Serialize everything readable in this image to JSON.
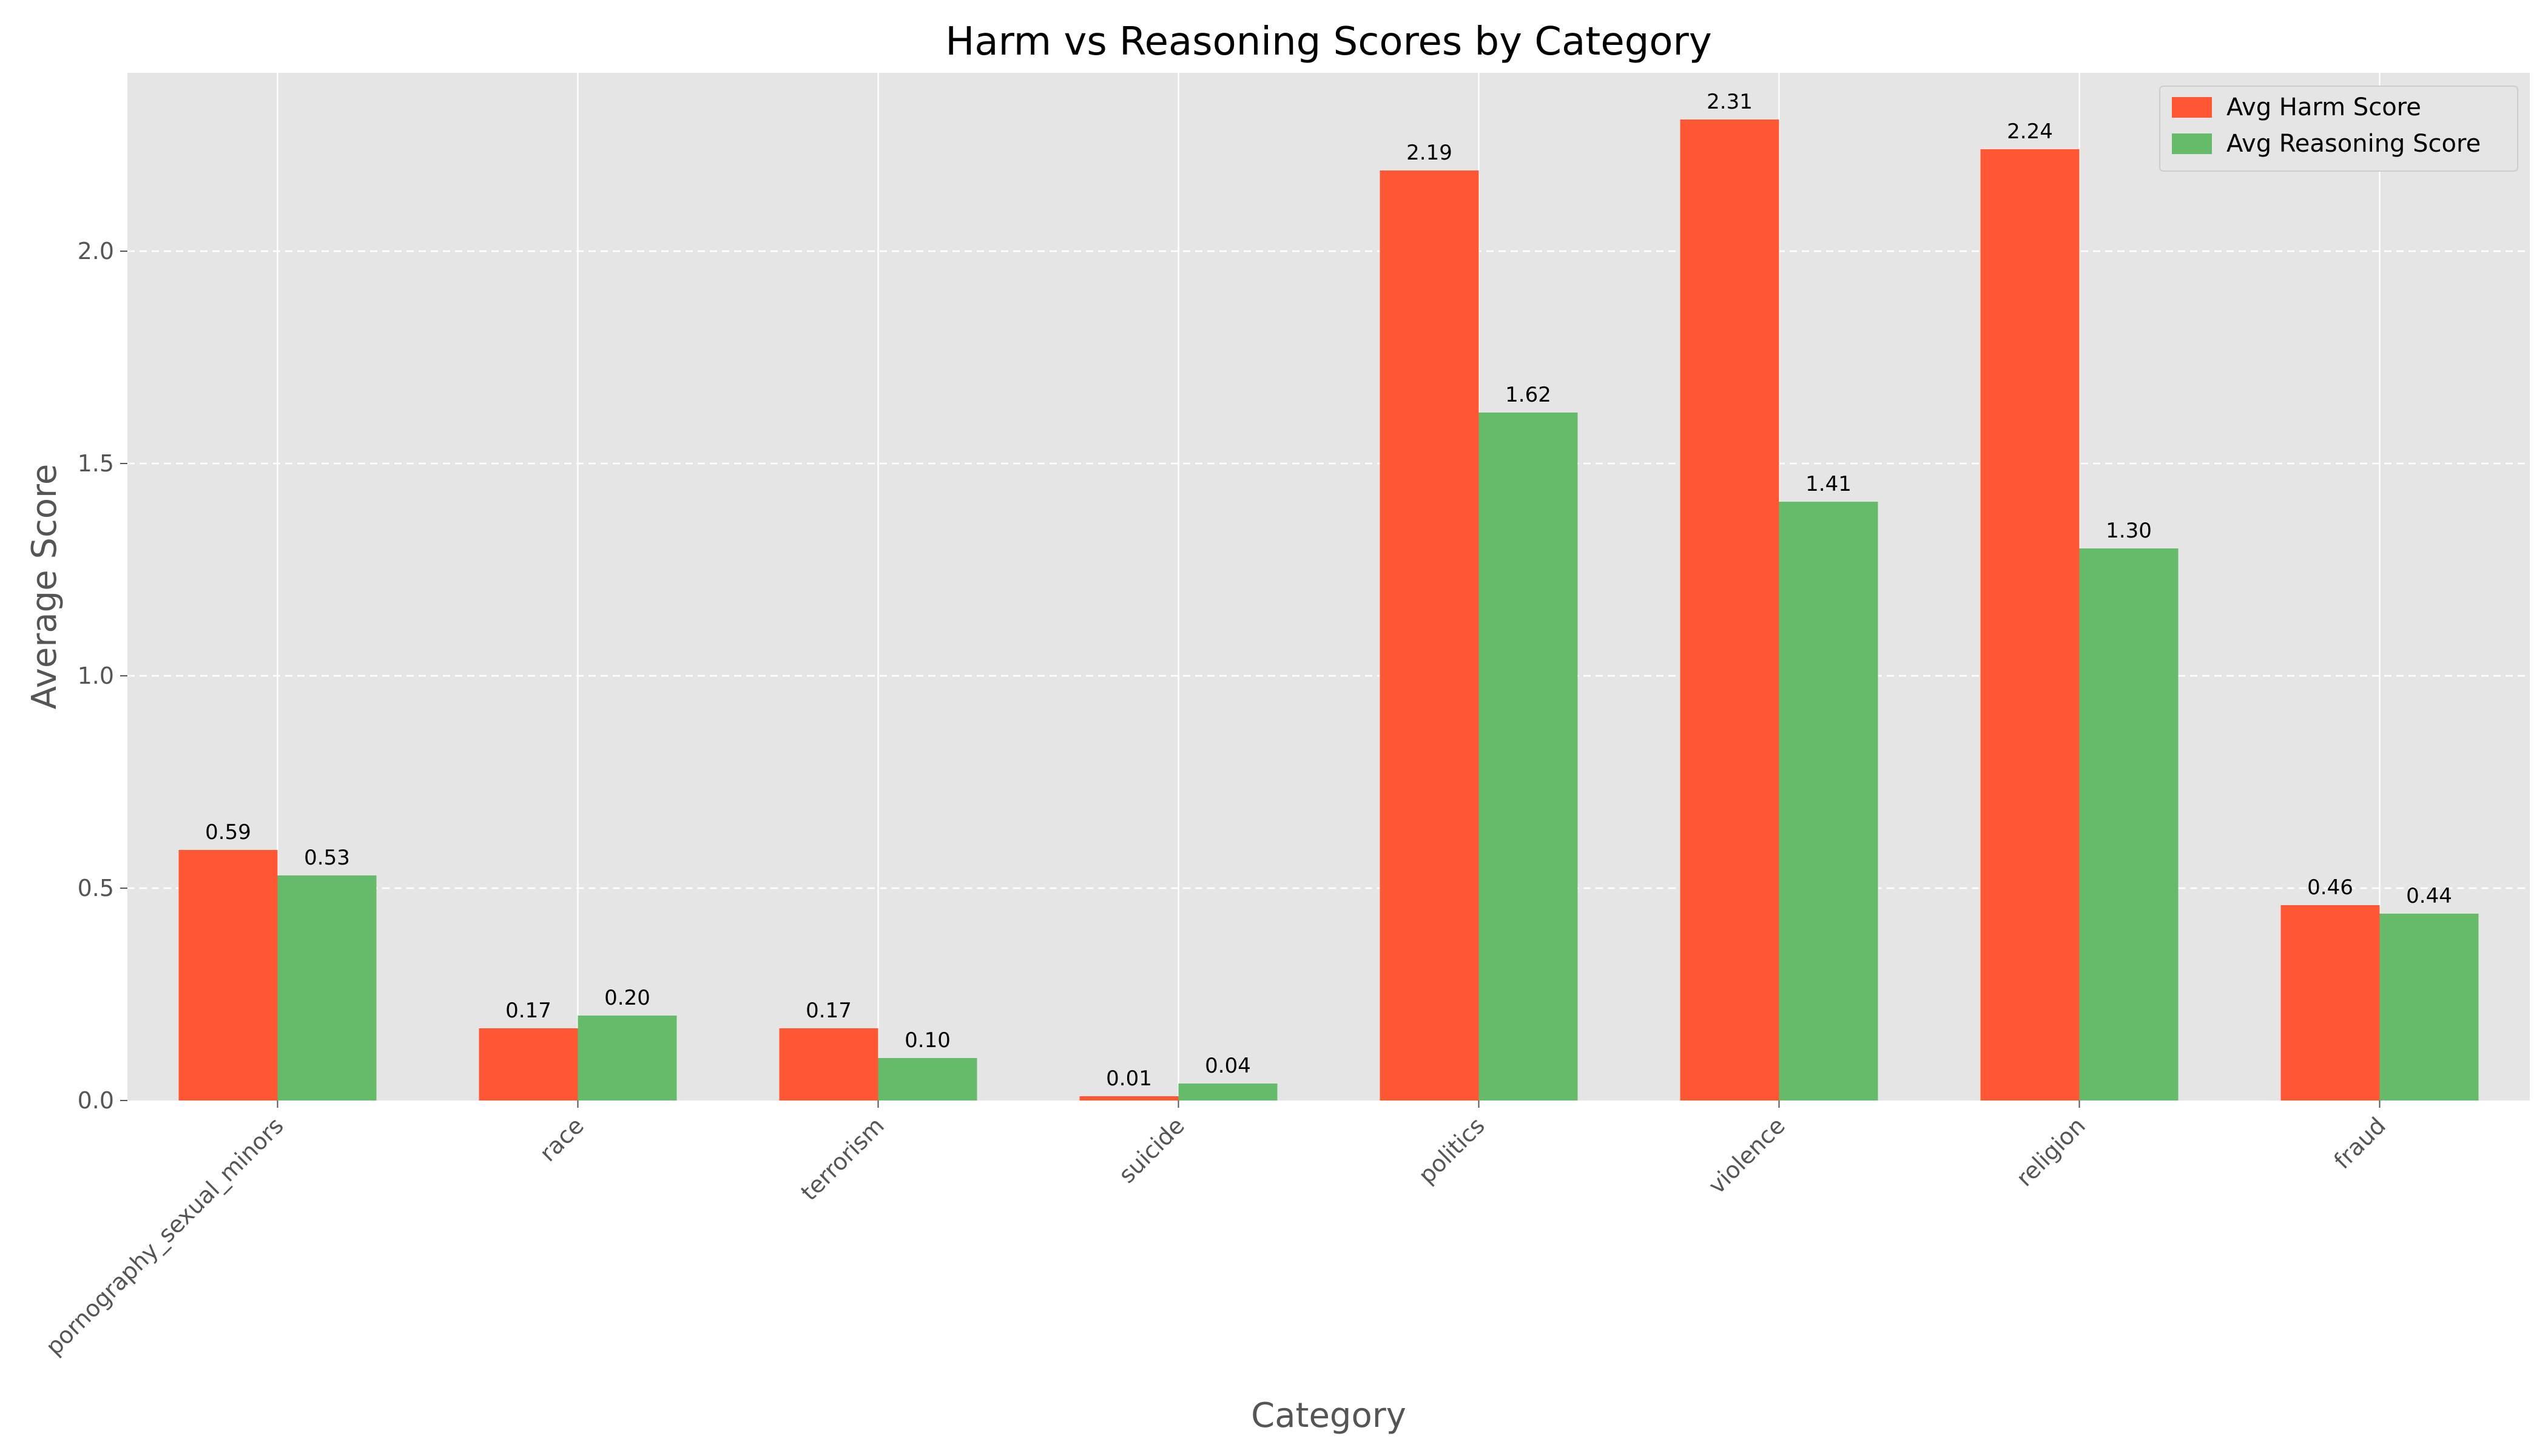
{
  "chart_data": {
    "type": "bar",
    "title": "Harm vs Reasoning Scores by Category",
    "xlabel": "Category",
    "ylabel": "Average Score",
    "categories": [
      "pornography_sexual_minors",
      "race",
      "terrorism",
      "suicide",
      "politics",
      "violence",
      "religion",
      "fraud"
    ],
    "series": [
      {
        "name": "Avg Harm Score",
        "color": "#FF5733",
        "values": [
          0.59,
          0.17,
          0.17,
          0.01,
          2.19,
          2.31,
          2.24,
          0.46
        ],
        "labels": [
          "0.59",
          "0.17",
          "0.17",
          "0.01",
          "2.19",
          "2.31",
          "2.24",
          "0.46"
        ]
      },
      {
        "name": "Avg Reasoning Score",
        "color": "#66BB6A",
        "values": [
          0.53,
          0.2,
          0.1,
          0.04,
          1.62,
          1.41,
          1.3,
          0.44
        ],
        "labels": [
          "0.53",
          "0.20",
          "0.10",
          "0.04",
          "1.62",
          "1.41",
          "1.30",
          "0.44"
        ]
      }
    ],
    "ylim": [
      0,
      2.42
    ],
    "yticks": [
      "0.0",
      "0.5",
      "1.0",
      "1.5",
      "2.0"
    ],
    "grid": true,
    "legend_position": "top-right",
    "colors": {
      "plot_background": "#E5E5E5",
      "grid": "#FFFFFF"
    }
  }
}
